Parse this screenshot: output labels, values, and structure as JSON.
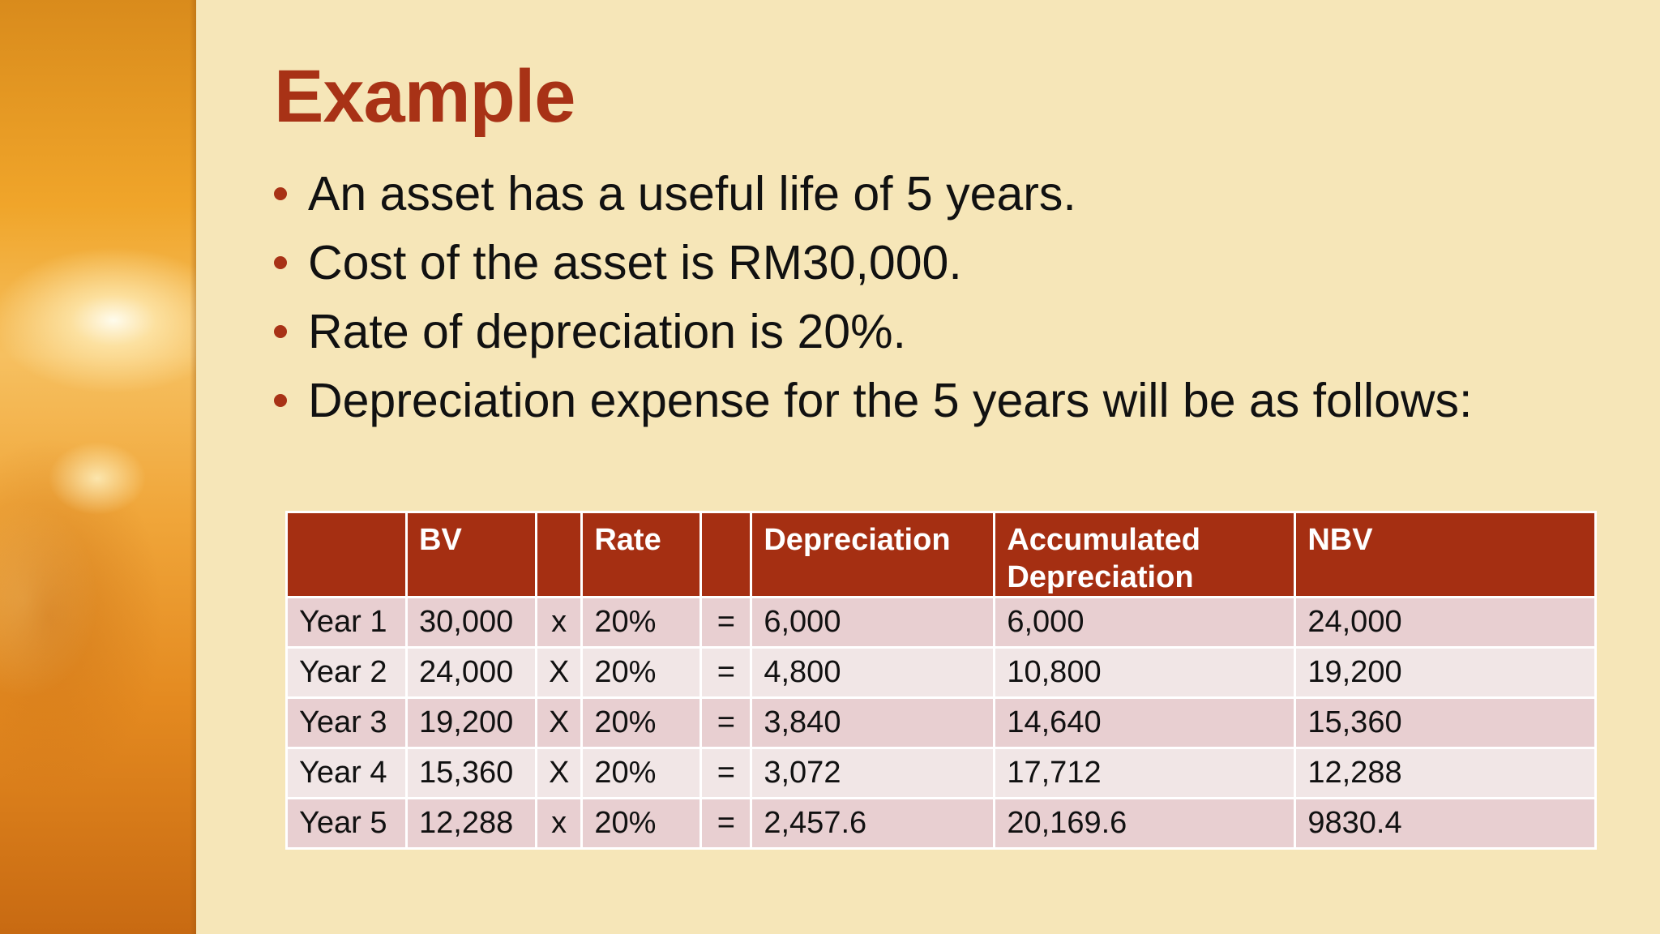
{
  "slide": {
    "title": "Example",
    "bullets": [
      "An asset has a useful life of 5 years.",
      "Cost of the asset is RM30,000.",
      "Rate of depreciation is 20%.",
      "Depreciation expense for the 5 years will be as follows:"
    ]
  },
  "table": {
    "headers": [
      "",
      "BV",
      "",
      "Rate",
      "",
      "Depreciation",
      "Accumulated Depreciation",
      "NBV"
    ],
    "header_accumulated_lines": [
      "Accumulated",
      "Depreciation"
    ],
    "rows": [
      [
        "Year 1",
        "30,000",
        "x",
        "20%",
        "=",
        "6,000",
        "6,000",
        "24,000"
      ],
      [
        "Year 2",
        "24,000",
        "X",
        "20%",
        "=",
        "4,800",
        "10,800",
        "19,200"
      ],
      [
        "Year 3",
        "19,200",
        "X",
        "20%",
        "=",
        "3,840",
        "14,640",
        "15,360"
      ],
      [
        "Year 4",
        "15,360",
        "X",
        "20%",
        "=",
        "3,072",
        "17,712",
        "12,288"
      ],
      [
        "Year 5",
        "12,288",
        "x",
        "20%",
        "=",
        "2,457.6",
        "20,169.6",
        "9830.4"
      ]
    ]
  },
  "colors": {
    "title": "#a83216",
    "header_bg": "#a52f12",
    "row_odd": "#e8cfd1",
    "row_even": "#f1e6e6",
    "background": "#f6e6b8"
  }
}
